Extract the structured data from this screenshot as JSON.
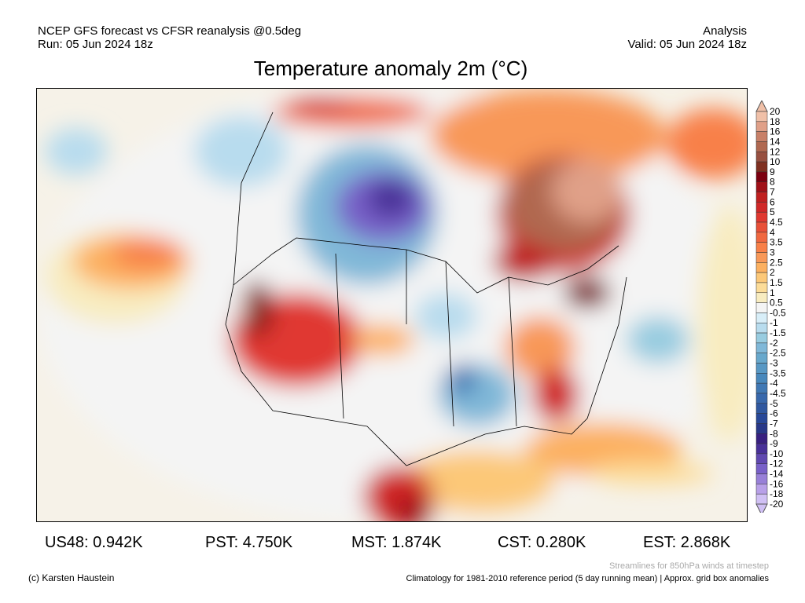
{
  "header": {
    "left_line1": "NCEP GFS forecast vs CFSR reanalysis @0.5deg",
    "left_line2": "Run: 05 Jun 2024 18z",
    "right_line1": "Analysis",
    "right_line2": "Valid: 05 Jun 2024 18z"
  },
  "chart_data": {
    "type": "heatmap",
    "title": "Temperature anomaly 2m (°C)",
    "region": "North America",
    "colorbar": {
      "labels": [
        "20",
        "18",
        "16",
        "14",
        "12",
        "10",
        "9",
        "8",
        "7",
        "6",
        "5",
        "4.5",
        "4",
        "3.5",
        "3",
        "2.5",
        "2",
        "1.5",
        "1",
        "0.5",
        "-0.5",
        "-1",
        "-1.5",
        "-2",
        "-2.5",
        "-3",
        "-3.5",
        "-4",
        "-4.5",
        "-5",
        "-6",
        "-7",
        "-8",
        "-9",
        "-10",
        "-12",
        "-14",
        "-16",
        "-18",
        "-20"
      ],
      "colors": [
        "#f0c0a8",
        "#e0a088",
        "#c88068",
        "#b06850",
        "#985040",
        "#803020",
        "#7c0010",
        "#a01018",
        "#c02020",
        "#d02828",
        "#e03830",
        "#e85038",
        "#f06840",
        "#f88048",
        "#f89858",
        "#fcb060",
        "#fcc878",
        "#fcdc98",
        "#f8ecc0",
        "#f4f4f4",
        "#d8eef8",
        "#b8dcee",
        "#98cce0",
        "#80b8d8",
        "#68a8cc",
        "#5898c4",
        "#4888bc",
        "#4078b4",
        "#3868ac",
        "#3058a0",
        "#284898",
        "#283888",
        "#382080",
        "#483098",
        "#6048b0",
        "#7860c8",
        "#9880d8",
        "#b8a0e8",
        "#d0c0f4"
      ]
    },
    "regional_means": [
      {
        "label": "US48: 0.942K"
      },
      {
        "label": "PST: 4.750K"
      },
      {
        "label": "MST: 1.874K"
      },
      {
        "label": "CST: 0.280K"
      },
      {
        "label": "EST: 2.868K"
      }
    ]
  },
  "footer": {
    "credit": "(c) Karsten Haustein",
    "streamlines": "Streamlines for 850hPa winds at timestep",
    "climatology": "Climatology for 1981-2010 reference period (5 day running mean) | Approx. grid box anomalies"
  }
}
